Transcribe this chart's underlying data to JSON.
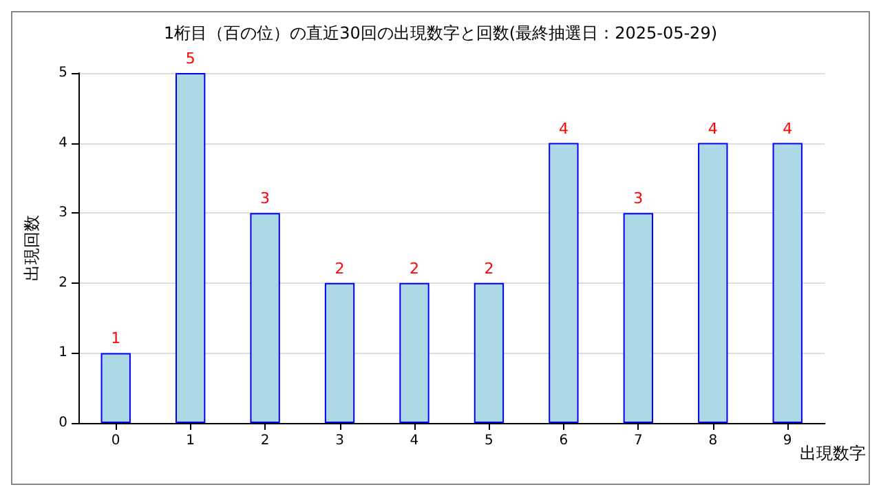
{
  "chart_data": {
    "type": "bar",
    "title": "1桁目（百の位）の直近30回の出現数字と回数(最終抽選日：2025-05-29)",
    "xlabel": "出現数字",
    "ylabel": "出現回数",
    "categories": [
      "0",
      "1",
      "2",
      "3",
      "4",
      "5",
      "6",
      "7",
      "8",
      "9"
    ],
    "values": [
      1,
      5,
      3,
      2,
      2,
      2,
      4,
      3,
      4,
      4
    ],
    "color": "#add8e6",
    "ylim": [
      0,
      5
    ],
    "yticks": [
      0,
      1,
      2,
      3,
      4,
      5
    ],
    "grid": "y",
    "data_labels": true
  }
}
